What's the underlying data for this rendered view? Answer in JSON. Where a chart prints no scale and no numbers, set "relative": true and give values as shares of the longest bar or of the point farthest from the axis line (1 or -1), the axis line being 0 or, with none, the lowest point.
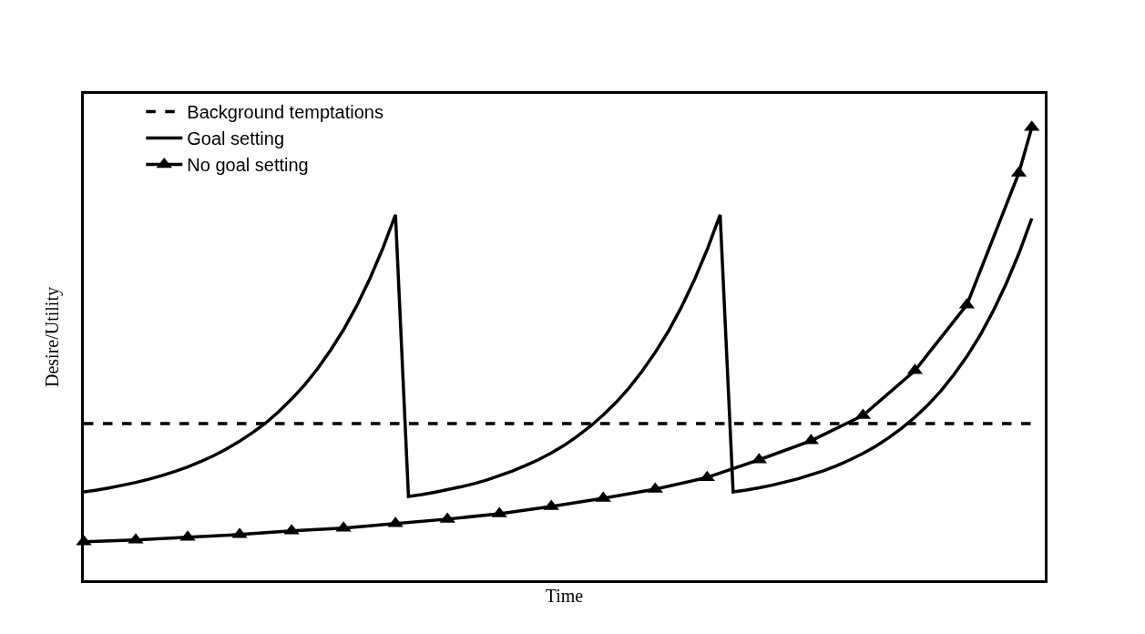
{
  "chart_data": {
    "type": "line",
    "relative": true,
    "xlabel": "Time",
    "ylabel": "Desire/Utility",
    "legend": "top left",
    "tick_labels": false,
    "categories": [
      null,
      null,
      null,
      null,
      null,
      null,
      null,
      null,
      null,
      null,
      null,
      null,
      null,
      null,
      null,
      null,
      null,
      null,
      null,
      null,
      null,
      null,
      null,
      null,
      null,
      null,
      null,
      null,
      null,
      null,
      null,
      null,
      null,
      null,
      null,
      null,
      null,
      null,
      null,
      null,
      null,
      null,
      null,
      null,
      null,
      null,
      null,
      null,
      null,
      null,
      null,
      null,
      null,
      null,
      null,
      null,
      null,
      null,
      null,
      null,
      null,
      null,
      null,
      null,
      null,
      null,
      null,
      null,
      null,
      null,
      null,
      null,
      null,
      null
    ],
    "series": [
      {
        "name": "Background temptations",
        "color": "#000000",
        "line_style": "dashed",
        "marker": "none",
        "values": [
          0.346,
          0.346,
          0.346,
          0.346,
          0.346,
          0.346,
          0.346,
          0.346,
          0.346,
          0.346,
          0.346,
          0.346,
          0.346,
          0.346,
          0.346,
          0.346,
          0.346,
          0.346,
          0.346,
          0.346,
          0.346,
          0.346,
          0.346,
          0.346,
          0.346,
          0.346,
          0.346,
          0.346,
          0.346,
          0.346,
          0.346,
          0.346,
          0.346,
          0.346,
          0.346,
          0.346,
          0.346,
          0.346,
          0.346,
          0.346,
          0.346,
          0.346,
          0.346,
          0.346,
          0.346,
          0.346,
          0.346,
          0.346,
          0.346,
          0.346,
          0.346,
          0.346,
          0.346,
          0.346,
          0.346,
          0.346,
          0.346,
          0.346,
          0.346,
          0.346,
          0.346,
          0.346,
          0.346,
          0.346,
          0.346,
          0.346,
          0.346,
          0.346,
          0.346,
          0.346,
          0.346,
          0.346,
          0.346,
          0.346
        ]
      },
      {
        "name": "Goal setting",
        "color": "#000000",
        "line_style": "solid",
        "marker": "none",
        "values": [
          0.195,
          0.199,
          0.204,
          0.21,
          0.216,
          0.223,
          0.231,
          0.24,
          0.25,
          0.262,
          0.275,
          0.29,
          0.307,
          0.326,
          0.347,
          0.372,
          0.4,
          0.431,
          0.467,
          0.508,
          0.553,
          0.605,
          0.664,
          0.731,
          0.807,
          0.185,
          0.189,
          0.194,
          0.2,
          0.206,
          0.213,
          0.221,
          0.231,
          0.241,
          0.253,
          0.266,
          0.281,
          0.298,
          0.318,
          0.34,
          0.365,
          0.393,
          0.425,
          0.462,
          0.503,
          0.549,
          0.602,
          0.662,
          0.73,
          0.807,
          0.195,
          0.199,
          0.204,
          0.21,
          0.217,
          0.224,
          0.233,
          0.242,
          0.253,
          0.266,
          0.28,
          0.296,
          0.315,
          0.336,
          0.36,
          0.387,
          0.418,
          0.454,
          0.494,
          0.54,
          0.593,
          0.653,
          0.721,
          0.799
        ]
      },
      {
        "name": "No goal setting",
        "color": "#000000",
        "line_style": "solid",
        "marker": "triangle",
        "values": [
          0.085,
          null,
          null,
          null,
          0.089,
          null,
          null,
          null,
          0.095,
          null,
          null,
          null,
          0.101,
          null,
          null,
          null,
          0.109,
          null,
          null,
          null,
          0.115,
          null,
          null,
          null,
          0.125,
          null,
          null,
          null,
          0.135,
          null,
          null,
          null,
          0.147,
          null,
          null,
          null,
          0.163,
          null,
          null,
          null,
          0.181,
          null,
          null,
          null,
          0.201,
          null,
          null,
          null,
          0.227,
          null,
          null,
          null,
          0.266,
          null,
          null,
          null,
          0.308,
          null,
          null,
          null,
          0.364,
          null,
          null,
          null,
          0.463,
          null,
          null,
          null,
          0.608,
          null,
          null,
          null,
          0.899,
          1.0
        ]
      }
    ]
  }
}
